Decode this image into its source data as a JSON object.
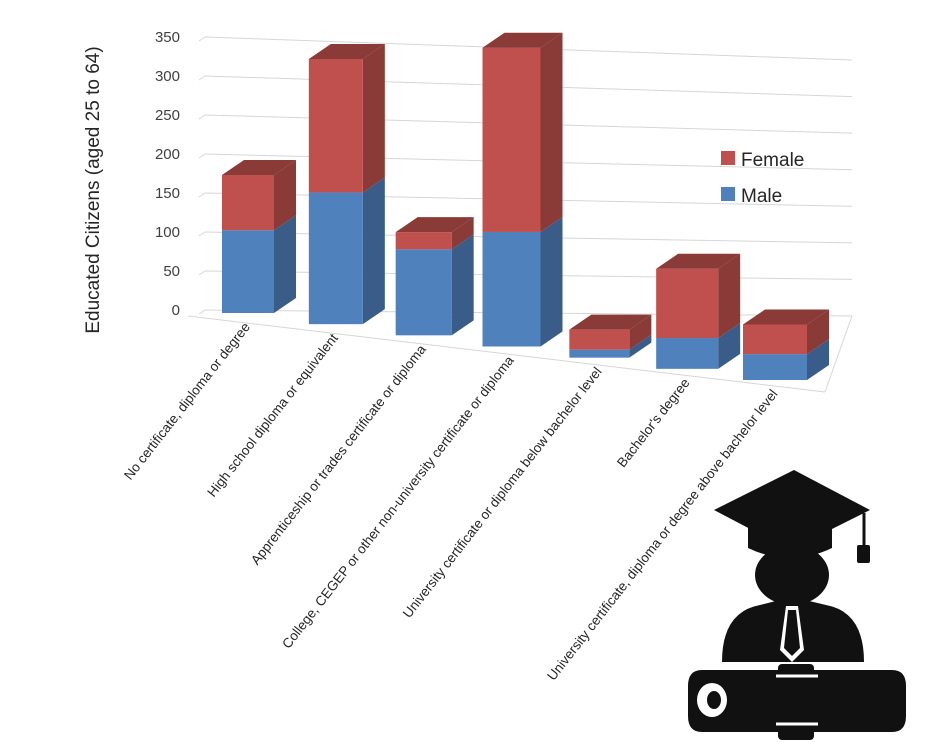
{
  "chart_data": {
    "type": "bar",
    "stacked": true,
    "projection": "3d-perspective",
    "ylabel": "Educated Citizens (aged 25 to 64)",
    "ylim": [
      0,
      350
    ],
    "yticks": [
      0,
      50,
      100,
      150,
      200,
      250,
      300,
      350
    ],
    "grid": true,
    "legend_position": "right",
    "categories": [
      "No certificate, diploma or degree",
      "High school diploma or equivalent",
      "Apprenticeship or trades certificate or diploma",
      "College, CEGEP or other non-university certificate or diploma",
      "University certificate or diploma below bachelor level",
      "Bachelor's degree",
      "University certificate, diploma or degree above bachelor level"
    ],
    "series": [
      {
        "name": "Male",
        "color": "#4f81bd",
        "values": [
          90,
          148,
          100,
          138,
          10,
          40,
          35
        ]
      },
      {
        "name": "Female",
        "color": "#c0504d",
        "values": [
          60,
          150,
          20,
          222,
          25,
          90,
          40
        ]
      }
    ]
  },
  "decoration": {
    "icon": "graduate-icon"
  }
}
